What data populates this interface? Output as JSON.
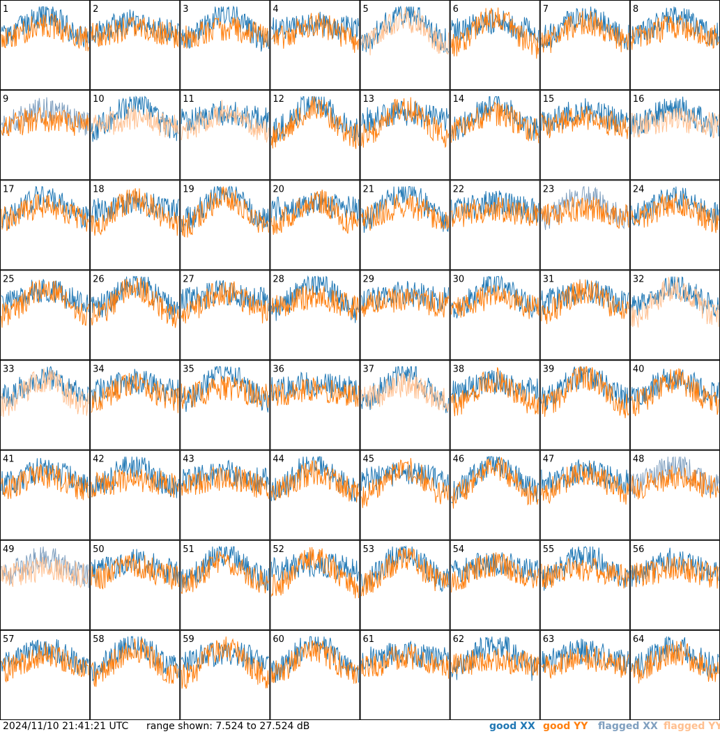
{
  "chart_data": {
    "type": "line",
    "layout": "8x8 grid of small multiples",
    "panels": 64,
    "tiles": [
      {
        "id": "1",
        "xx": "good",
        "yy": "good"
      },
      {
        "id": "2",
        "xx": "good",
        "yy": "good"
      },
      {
        "id": "3",
        "xx": "good",
        "yy": "good"
      },
      {
        "id": "4",
        "xx": "good",
        "yy": "good"
      },
      {
        "id": "5",
        "xx": "good",
        "yy": "flagged"
      },
      {
        "id": "6",
        "xx": "good",
        "yy": "good"
      },
      {
        "id": "7",
        "xx": "good",
        "yy": "good"
      },
      {
        "id": "8",
        "xx": "good",
        "yy": "good"
      },
      {
        "id": "9",
        "xx": "flagged",
        "yy": "good"
      },
      {
        "id": "10",
        "xx": "good",
        "yy": "flagged"
      },
      {
        "id": "11",
        "xx": "good",
        "yy": "flagged"
      },
      {
        "id": "12",
        "xx": "good",
        "yy": "good"
      },
      {
        "id": "13",
        "xx": "good",
        "yy": "good"
      },
      {
        "id": "14",
        "xx": "good",
        "yy": "good"
      },
      {
        "id": "15",
        "xx": "good",
        "yy": "good"
      },
      {
        "id": "16",
        "xx": "good",
        "yy": "flagged"
      },
      {
        "id": "17",
        "xx": "good",
        "yy": "good"
      },
      {
        "id": "18",
        "xx": "good",
        "yy": "good"
      },
      {
        "id": "19",
        "xx": "good",
        "yy": "good"
      },
      {
        "id": "20",
        "xx": "good",
        "yy": "good"
      },
      {
        "id": "21",
        "xx": "good",
        "yy": "good"
      },
      {
        "id": "22",
        "xx": "good",
        "yy": "good"
      },
      {
        "id": "23",
        "xx": "flagged",
        "yy": "good"
      },
      {
        "id": "24",
        "xx": "good",
        "yy": "good"
      },
      {
        "id": "25",
        "xx": "good",
        "yy": "good"
      },
      {
        "id": "26",
        "xx": "good",
        "yy": "good"
      },
      {
        "id": "27",
        "xx": "good",
        "yy": "good"
      },
      {
        "id": "28",
        "xx": "good",
        "yy": "good"
      },
      {
        "id": "29",
        "xx": "good",
        "yy": "good"
      },
      {
        "id": "30",
        "xx": "good",
        "yy": "good"
      },
      {
        "id": "31",
        "xx": "good",
        "yy": "good"
      },
      {
        "id": "32",
        "xx": "good",
        "yy": "flagged"
      },
      {
        "id": "33",
        "xx": "good",
        "yy": "flagged"
      },
      {
        "id": "34",
        "xx": "good",
        "yy": "good"
      },
      {
        "id": "35",
        "xx": "good",
        "yy": "good"
      },
      {
        "id": "36",
        "xx": "good",
        "yy": "good"
      },
      {
        "id": "37",
        "xx": "good",
        "yy": "flagged"
      },
      {
        "id": "38",
        "xx": "good",
        "yy": "good"
      },
      {
        "id": "39",
        "xx": "good",
        "yy": "good"
      },
      {
        "id": "40",
        "xx": "good",
        "yy": "good"
      },
      {
        "id": "41",
        "xx": "good",
        "yy": "good"
      },
      {
        "id": "42",
        "xx": "good",
        "yy": "good"
      },
      {
        "id": "43",
        "xx": "good",
        "yy": "good"
      },
      {
        "id": "44",
        "xx": "good",
        "yy": "good"
      },
      {
        "id": "45",
        "xx": "good",
        "yy": "good"
      },
      {
        "id": "46",
        "xx": "good",
        "yy": "good"
      },
      {
        "id": "47",
        "xx": "good",
        "yy": "good"
      },
      {
        "id": "48",
        "xx": "flagged",
        "yy": "good"
      },
      {
        "id": "49",
        "xx": "flagged",
        "yy": "flagged"
      },
      {
        "id": "50",
        "xx": "good",
        "yy": "good"
      },
      {
        "id": "51",
        "xx": "good",
        "yy": "good"
      },
      {
        "id": "52",
        "xx": "good",
        "yy": "good"
      },
      {
        "id": "53",
        "xx": "good",
        "yy": "good"
      },
      {
        "id": "54",
        "xx": "good",
        "yy": "good"
      },
      {
        "id": "55",
        "xx": "good",
        "yy": "good"
      },
      {
        "id": "56",
        "xx": "good",
        "yy": "good"
      },
      {
        "id": "57",
        "xx": "good",
        "yy": "good"
      },
      {
        "id": "58",
        "xx": "good",
        "yy": "good"
      },
      {
        "id": "59",
        "xx": "good",
        "yy": "good"
      },
      {
        "id": "60",
        "xx": "good",
        "yy": "good"
      },
      {
        "id": "61",
        "xx": "good",
        "yy": "good"
      },
      {
        "id": "62",
        "xx": "good",
        "yy": "good"
      },
      {
        "id": "63",
        "xx": "good",
        "yy": "good"
      },
      {
        "id": "64",
        "xx": "good",
        "yy": "good"
      }
    ],
    "range_db": [
      7.524,
      27.524
    ],
    "legend_position": "bottom-right",
    "grid": false
  },
  "footer": {
    "timestamp": "2024/11/10 21:41:21 UTC",
    "range_text": "range shown: 7.524 to 27.524 dB"
  },
  "legend": {
    "good_xx": {
      "label": "good XX",
      "color": "#1f77b4"
    },
    "good_yy": {
      "label": "good YY",
      "color": "#ff7f0e"
    },
    "flagged_xx": {
      "label": "flagged XX",
      "color": "#7f9fbf"
    },
    "flagged_yy": {
      "label": "flagged YY",
      "color": "#ffbf8f"
    }
  }
}
